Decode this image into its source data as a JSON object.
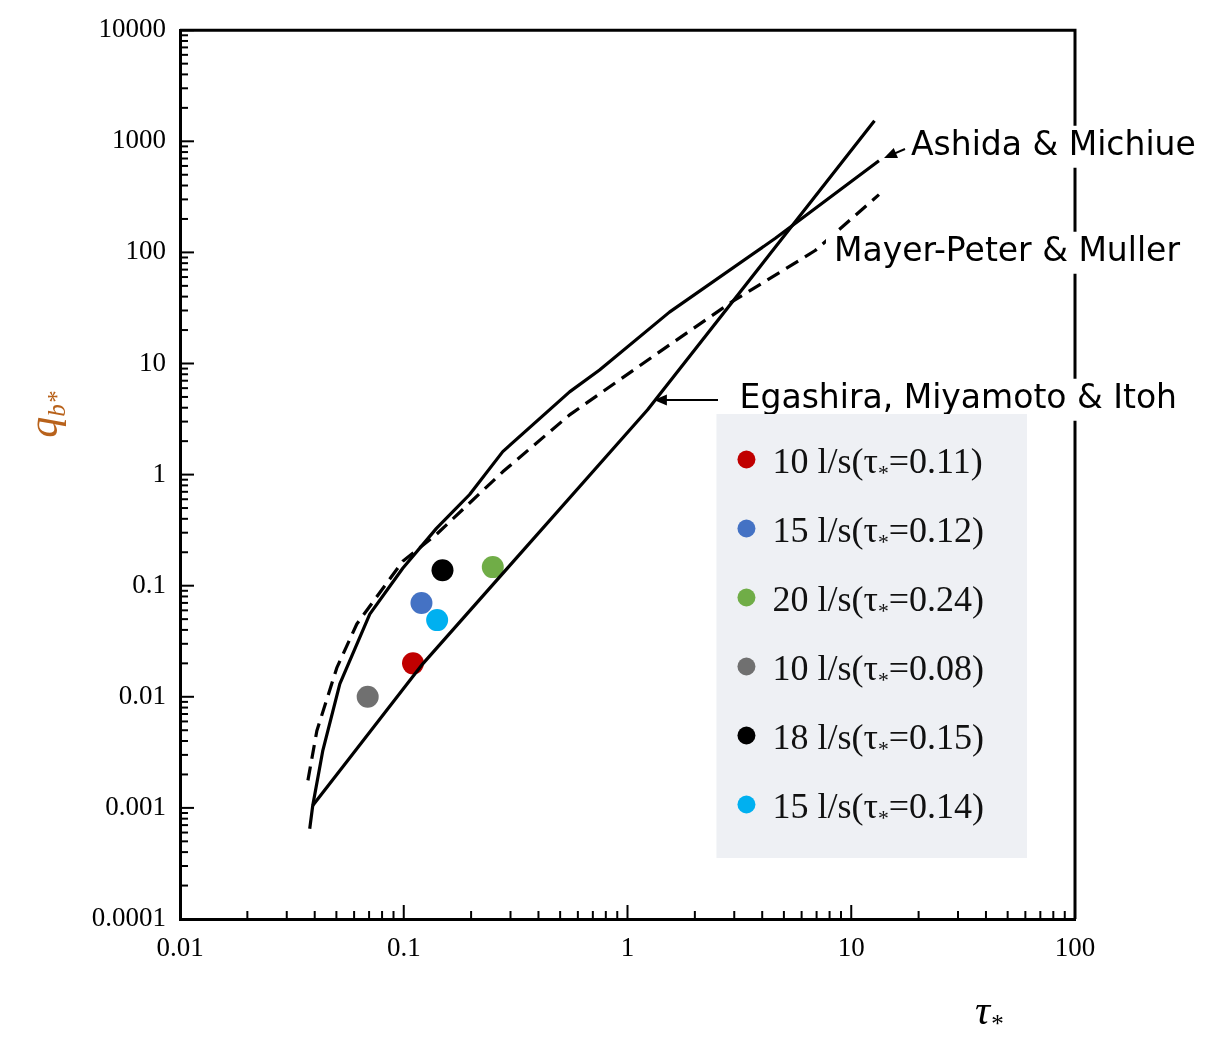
{
  "chart_data": {
    "type": "scatter",
    "xlabel": "τ$_{*}$",
    "ylabel": "q$_{b*}$",
    "log": "xy",
    "xlim": [
      0.01,
      100
    ],
    "ylim": [
      0.0001,
      10000
    ],
    "xticks": [
      0.01,
      0.1,
      1,
      10,
      100
    ],
    "yticks": [
      0.0001,
      0.001,
      0.01,
      0.1,
      1,
      10,
      100,
      1000,
      10000
    ],
    "grid": false,
    "legend": "bottom right",
    "marker": "circle",
    "series": [
      {
        "name": "Ashida & Michiue",
        "type": "line",
        "color": "#000000",
        "marker": "none",
        "line_style": "solid",
        "x": [
          0.038,
          0.0392,
          0.0435,
          0.0518,
          0.0705,
          0.099,
          0.14,
          0.197,
          0.277,
          0.551,
          0.75,
          1.54,
          4.58,
          13.3
        ],
        "values": [
          0.00065,
          0.00105,
          0.0033,
          0.0131,
          0.0555,
          0.1435,
          0.328,
          0.662,
          1.61,
          5.55,
          8.75,
          29,
          134,
          669
        ]
      },
      {
        "name": "Mayer-Peter & Muller",
        "type": "line",
        "color": "#000000",
        "marker": "none",
        "line_style": "dashed",
        "x": [
          0.0373,
          0.0409,
          0.0502,
          0.0617,
          0.099,
          0.14,
          0.277,
          0.551,
          1.54,
          2.91,
          6.9,
          13.3
        ],
        "values": [
          0.00177,
          0.00495,
          0.0182,
          0.0452,
          0.166,
          0.29,
          1.06,
          3.45,
          14.7,
          35.6,
          104,
          331
        ]
      },
      {
        "name": "Egashira, Miyamoto & Itoh",
        "type": "line",
        "color": "#000000",
        "marker": "none",
        "line_style": "solid",
        "x": [
          0.0392,
          0.1216,
          1.23,
          12.7
        ],
        "values": [
          0.00105,
          0.0198,
          3.83,
          1528
        ]
      },
      {
        "name": "10 l/s(τ$_{*}$=0.11)",
        "color": "#c00000",
        "x": [
          0.11
        ],
        "values": [
          0.02
        ]
      },
      {
        "name": "15 l/s(τ$_{*}$=0.12)",
        "color": "#4472c4",
        "x": [
          0.12
        ],
        "values": [
          0.07
        ]
      },
      {
        "name": "20 l/s(τ$_{*}$=0.24)",
        "color": "#70ad47",
        "x": [
          0.25
        ],
        "values": [
          0.147
        ]
      },
      {
        "name": "10 l/s(τ$_{*}$=0.08)",
        "color": "#707070",
        "x": [
          0.069
        ],
        "values": [
          0.01
        ]
      },
      {
        "name": "18 l/s(τ$_{*}$=0.15)",
        "color": "#000000",
        "x": [
          0.149
        ],
        "values": [
          0.138
        ]
      },
      {
        "name": "15 l/s(τ$_{*}$=0.14)",
        "color": "#00b0f0",
        "x": [
          0.141
        ],
        "values": [
          0.049
        ]
      }
    ]
  }
}
